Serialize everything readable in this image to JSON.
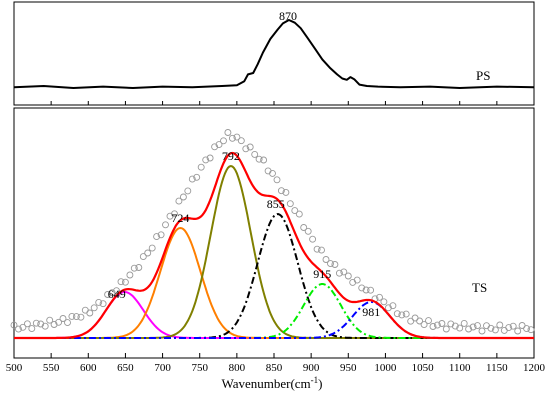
{
  "chart_data": [
    {
      "panel": "top",
      "type": "line",
      "panel_label": "PS",
      "annotations": [
        {
          "x": 870,
          "text": "870"
        }
      ],
      "xlim": [
        500,
        1200
      ],
      "series": [
        {
          "color": "#000000",
          "x": [
            500,
            540,
            580,
            620,
            660,
            700,
            740,
            780,
            800,
            810,
            815,
            822,
            828,
            835,
            845,
            855,
            862,
            870,
            878,
            886,
            895,
            905,
            915,
            925,
            935,
            942,
            948,
            953,
            958,
            965,
            975,
            990,
            1020,
            1060,
            1100,
            1150,
            1200
          ],
          "y": [
            0.01,
            0.03,
            0.0,
            0.02,
            0.0,
            0.02,
            0.01,
            0.03,
            0.04,
            0.1,
            0.2,
            0.22,
            0.35,
            0.52,
            0.72,
            0.86,
            0.95,
            1.0,
            0.96,
            0.88,
            0.74,
            0.58,
            0.42,
            0.3,
            0.2,
            0.14,
            0.12,
            0.16,
            0.13,
            0.05,
            0.03,
            0.02,
            0.01,
            0.02,
            0.0,
            0.02,
            0.01
          ]
        }
      ]
    },
    {
      "panel": "bottom",
      "type": "line",
      "panel_label": "TS",
      "xlabel": "Wavenumber(cm",
      "xlabel_sup": "-1",
      "xlabel_close": ")",
      "xlim": [
        500,
        1200
      ],
      "ylim": [
        0,
        1.05
      ],
      "xticks": [
        500,
        550,
        600,
        650,
        700,
        750,
        800,
        850,
        900,
        950,
        1000,
        1050,
        1100,
        1150,
        1200
      ],
      "observed": {
        "marker": "open-circle",
        "color": "#999999",
        "x": [
          500,
          520,
          540,
          560,
          580,
          600,
          615,
          630,
          645,
          660,
          675,
          690,
          705,
          720,
          735,
          750,
          765,
          778,
          790,
          800,
          812,
          825,
          840,
          855,
          870,
          885,
          900,
          915,
          930,
          945,
          960,
          975,
          990,
          1005,
          1020,
          1040,
          1060,
          1080,
          1100,
          1130,
          1160,
          1200
        ],
        "y": [
          0.05,
          0.06,
          0.07,
          0.08,
          0.1,
          0.13,
          0.17,
          0.22,
          0.27,
          0.33,
          0.4,
          0.48,
          0.57,
          0.66,
          0.75,
          0.84,
          0.92,
          0.98,
          1.02,
          1.0,
          0.96,
          0.92,
          0.86,
          0.78,
          0.69,
          0.6,
          0.5,
          0.42,
          0.36,
          0.32,
          0.28,
          0.24,
          0.2,
          0.16,
          0.12,
          0.09,
          0.07,
          0.06,
          0.06,
          0.05,
          0.05,
          0.05
        ]
      },
      "peaks": [
        {
          "center": 649,
          "height": 0.23,
          "sigma": 25,
          "color": "#ff00ff",
          "dash": "solid",
          "label": "649"
        },
        {
          "center": 724,
          "height": 0.55,
          "sigma": 27,
          "color": "#ff7f00",
          "dash": "solid",
          "label": "724"
        },
        {
          "center": 792,
          "height": 0.86,
          "sigma": 27,
          "color": "#808000",
          "dash": "solid",
          "label": "792"
        },
        {
          "center": 855,
          "height": 0.62,
          "sigma": 27,
          "color": "#000000",
          "dash": "dashdot",
          "label": "855"
        },
        {
          "center": 915,
          "height": 0.27,
          "sigma": 25,
          "color": "#00ee00",
          "dash": "dashdot",
          "label": "915"
        },
        {
          "center": 981,
          "height": 0.18,
          "sigma": 25,
          "color": "#0000ff",
          "dash": "dashdot",
          "label": "981"
        }
      ],
      "envelope": {
        "color": "#ff0000"
      }
    }
  ]
}
